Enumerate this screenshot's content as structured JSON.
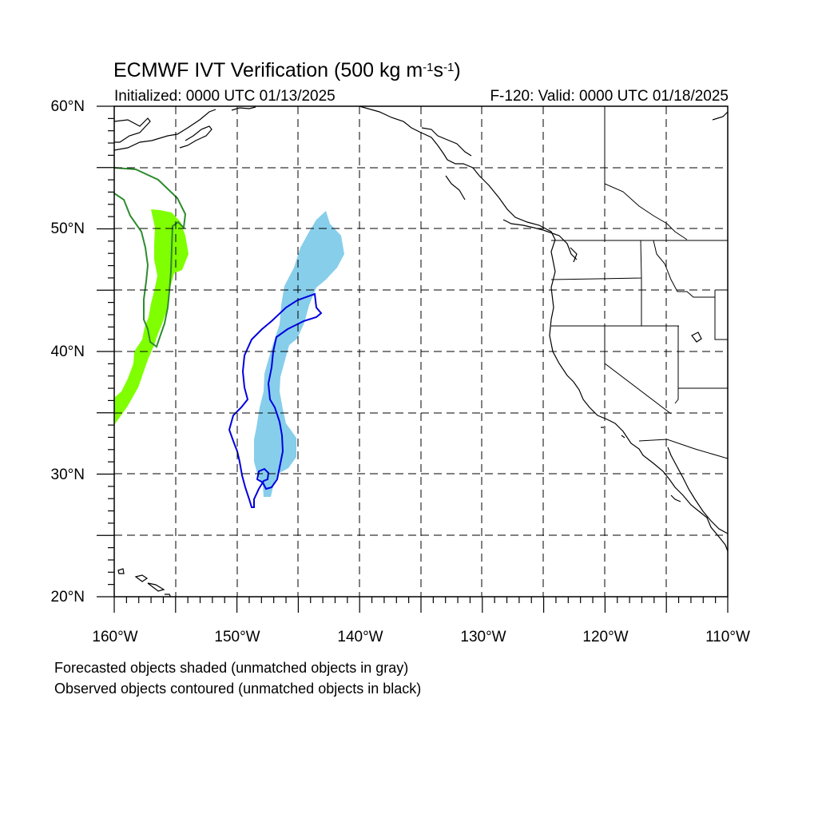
{
  "title": {
    "text": "ECMWF IVT Verification (500 kg m",
    "exp1": "-1",
    "mid": "s",
    "exp2": "-1",
    "close": ")"
  },
  "init_text": "Initialized: 0000 UTC 01/13/2025",
  "valid_text": "F-120: Valid: 0000 UTC 01/18/2025",
  "notes": [
    "Forecasted objects shaded (unmatched objects in gray)",
    "Observed objects contoured (unmatched objects in black)"
  ],
  "lat_labels": [
    "60°N",
    "50°N",
    "40°N",
    "30°N",
    "20°N"
  ],
  "lon_labels": [
    "160°W",
    "150°W",
    "140°W",
    "130°W",
    "120°W",
    "110°W"
  ],
  "colors": {
    "forecast_object_1": "#7fff00",
    "observed_object_1": "#2e8b2e",
    "forecast_object_2": "#87ceeb",
    "observed_object_2": "#0000e0",
    "coast": "#000000",
    "grid": "#000000"
  }
}
